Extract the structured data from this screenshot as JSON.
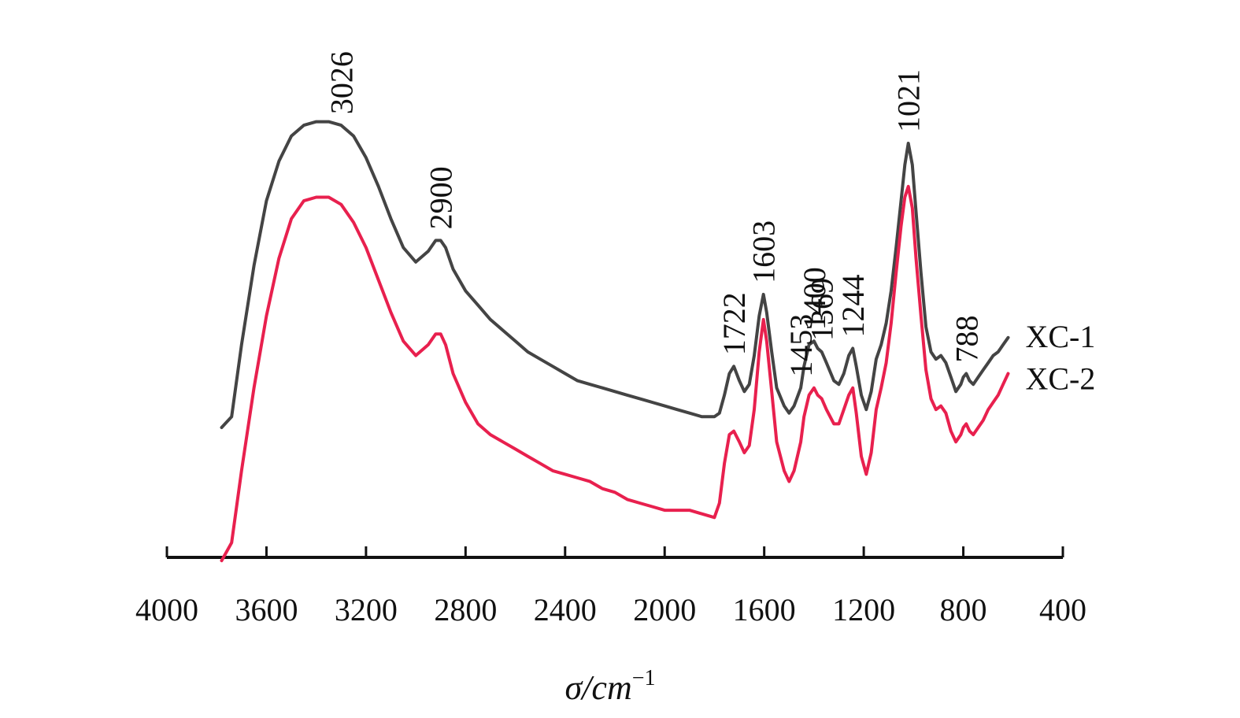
{
  "chart_data": {
    "type": "line",
    "title": "",
    "xlabel": "σ/cm",
    "xlabel_superscript": "−1",
    "ylabel": "",
    "xlim": [
      4000,
      400
    ],
    "x_reversed": true,
    "grid": false,
    "x_ticks": [
      4000,
      3600,
      3200,
      2800,
      2400,
      2000,
      1600,
      1200,
      800,
      400
    ],
    "x_tick_labels": [
      "4000",
      "3600",
      "3200",
      "2800",
      "2400",
      "2000",
      "1600",
      "1200",
      "800",
      "400"
    ],
    "series": [
      {
        "name": "XC-1",
        "color": "#444444",
        "x": [
          3780,
          3740,
          3700,
          3650,
          3600,
          3550,
          3500,
          3450,
          3400,
          3350,
          3300,
          3250,
          3200,
          3150,
          3100,
          3050,
          3000,
          2950,
          2920,
          2900,
          2880,
          2850,
          2800,
          2750,
          2700,
          2650,
          2600,
          2550,
          2500,
          2450,
          2400,
          2350,
          2300,
          2250,
          2200,
          2150,
          2100,
          2050,
          2000,
          1950,
          1900,
          1850,
          1800,
          1780,
          1760,
          1740,
          1722,
          1700,
          1680,
          1660,
          1640,
          1620,
          1603,
          1590,
          1570,
          1550,
          1520,
          1500,
          1480,
          1453,
          1440,
          1420,
          1400,
          1385,
          1369,
          1350,
          1320,
          1300,
          1280,
          1260,
          1244,
          1230,
          1210,
          1190,
          1170,
          1150,
          1130,
          1110,
          1090,
          1070,
          1050,
          1035,
          1021,
          1005,
          990,
          970,
          950,
          930,
          910,
          890,
          870,
          850,
          830,
          810,
          800,
          788,
          775,
          760,
          740,
          720,
          700,
          680,
          660,
          640,
          620
        ],
        "y": [
          0.07,
          0.1,
          0.3,
          0.52,
          0.7,
          0.81,
          0.88,
          0.91,
          0.92,
          0.92,
          0.91,
          0.88,
          0.82,
          0.74,
          0.65,
          0.57,
          0.53,
          0.56,
          0.59,
          0.59,
          0.57,
          0.51,
          0.45,
          0.41,
          0.37,
          0.34,
          0.31,
          0.28,
          0.26,
          0.24,
          0.22,
          0.2,
          0.19,
          0.18,
          0.17,
          0.16,
          0.15,
          0.14,
          0.13,
          0.12,
          0.11,
          0.1,
          0.1,
          0.11,
          0.16,
          0.22,
          0.24,
          0.2,
          0.17,
          0.19,
          0.27,
          0.38,
          0.44,
          0.39,
          0.28,
          0.18,
          0.13,
          0.11,
          0.13,
          0.18,
          0.24,
          0.3,
          0.31,
          0.29,
          0.28,
          0.25,
          0.2,
          0.19,
          0.22,
          0.27,
          0.29,
          0.24,
          0.16,
          0.12,
          0.17,
          0.26,
          0.3,
          0.36,
          0.45,
          0.57,
          0.7,
          0.8,
          0.86,
          0.8,
          0.67,
          0.5,
          0.35,
          0.28,
          0.26,
          0.27,
          0.25,
          0.21,
          0.17,
          0.19,
          0.21,
          0.22,
          0.2,
          0.19,
          0.21,
          0.23,
          0.25,
          0.27,
          0.28,
          0.3,
          0.32
        ]
      },
      {
        "name": "XC-2",
        "color": "#e8204e",
        "x": [
          3780,
          3740,
          3700,
          3650,
          3600,
          3550,
          3500,
          3450,
          3400,
          3350,
          3300,
          3250,
          3200,
          3150,
          3100,
          3050,
          3000,
          2950,
          2920,
          2900,
          2880,
          2850,
          2800,
          2750,
          2700,
          2650,
          2600,
          2550,
          2500,
          2450,
          2400,
          2350,
          2300,
          2250,
          2200,
          2150,
          2100,
          2050,
          2000,
          1950,
          1900,
          1850,
          1800,
          1780,
          1760,
          1740,
          1722,
          1700,
          1680,
          1660,
          1640,
          1620,
          1603,
          1590,
          1570,
          1550,
          1520,
          1500,
          1480,
          1453,
          1440,
          1420,
          1400,
          1385,
          1369,
          1350,
          1320,
          1300,
          1280,
          1260,
          1244,
          1230,
          1210,
          1190,
          1170,
          1150,
          1130,
          1110,
          1090,
          1070,
          1050,
          1035,
          1021,
          1005,
          990,
          970,
          950,
          930,
          910,
          890,
          870,
          850,
          830,
          810,
          800,
          788,
          775,
          760,
          740,
          720,
          700,
          680,
          660,
          640,
          620
        ],
        "y": [
          -0.3,
          -0.25,
          -0.05,
          0.18,
          0.38,
          0.54,
          0.65,
          0.7,
          0.71,
          0.71,
          0.69,
          0.64,
          0.57,
          0.48,
          0.39,
          0.31,
          0.27,
          0.3,
          0.33,
          0.33,
          0.3,
          0.22,
          0.14,
          0.08,
          0.05,
          0.03,
          0.01,
          -0.01,
          -0.03,
          -0.05,
          -0.06,
          -0.07,
          -0.08,
          -0.1,
          -0.11,
          -0.13,
          -0.14,
          -0.15,
          -0.16,
          -0.16,
          -0.16,
          -0.17,
          -0.18,
          -0.14,
          -0.03,
          0.05,
          0.06,
          0.03,
          0.0,
          0.02,
          0.12,
          0.28,
          0.37,
          0.31,
          0.17,
          0.03,
          -0.05,
          -0.08,
          -0.05,
          0.03,
          0.1,
          0.16,
          0.18,
          0.16,
          0.15,
          0.12,
          0.08,
          0.08,
          0.12,
          0.16,
          0.18,
          0.11,
          -0.01,
          -0.06,
          0.0,
          0.12,
          0.18,
          0.25,
          0.36,
          0.5,
          0.63,
          0.71,
          0.74,
          0.68,
          0.54,
          0.38,
          0.23,
          0.15,
          0.12,
          0.13,
          0.11,
          0.06,
          0.03,
          0.05,
          0.07,
          0.08,
          0.06,
          0.05,
          0.07,
          0.09,
          0.12,
          0.14,
          0.16,
          0.19,
          0.22
        ]
      }
    ],
    "annotations": [
      {
        "text": "3026",
        "series": "XC-1",
        "x": 3300
      },
      {
        "text": "2900",
        "series": "XC-1",
        "x": 2900
      },
      {
        "text": "1722",
        "series": "XC-1",
        "x": 1722
      },
      {
        "text": "1603",
        "series": "XC-1",
        "x": 1603
      },
      {
        "text": "1453",
        "series": "XC-1",
        "x": 1453
      },
      {
        "text": "1400",
        "series": "XC-1",
        "x": 1400
      },
      {
        "text": "1369",
        "series": "XC-1",
        "x": 1369
      },
      {
        "text": "1244",
        "series": "XC-1",
        "x": 1244
      },
      {
        "text": "1021",
        "series": "XC-1",
        "x": 1021
      },
      {
        "text": "788",
        "series": "XC-1",
        "x": 788
      }
    ],
    "legend_placement": "right-end-of-lines"
  }
}
